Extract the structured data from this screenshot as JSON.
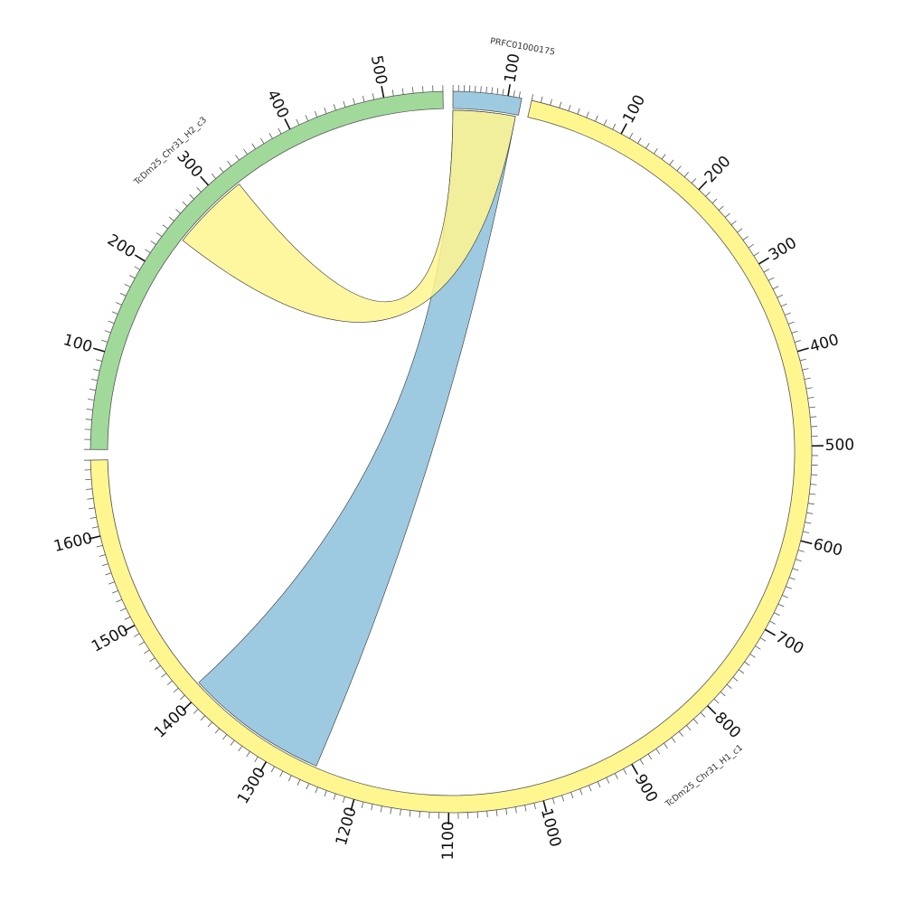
{
  "diagram": {
    "type": "circos",
    "scale_unit": "kb",
    "segments": [
      {
        "id": "PRFC01000175",
        "label": "PRFC01000175",
        "length": 125,
        "color": "#9ECAE1",
        "ticks": [
          100
        ]
      },
      {
        "id": "TcDm25_Chr31_H1_c1",
        "label": "TcDm25_Chr31_H1_c1",
        "length": 1680,
        "color": "#FFF68F",
        "ticks": [
          100,
          200,
          300,
          400,
          500,
          600,
          700,
          800,
          900,
          1000,
          1100,
          1200,
          1300,
          1400,
          1500,
          1600
        ]
      },
      {
        "id": "TcDm25_Chr31_H2_c3",
        "label": "TcDm25_Chr31_H2_c3",
        "length": 560,
        "color": "#A1D99B",
        "ticks": [
          100,
          200,
          300,
          400,
          500
        ]
      }
    ],
    "links": [
      {
        "from": {
          "segment": "PRFC01000175",
          "start": 0,
          "end": 120
        },
        "to": {
          "segment": "TcDm25_Chr31_H1_c1",
          "start": 1250,
          "end": 1410
        },
        "color": "#9ECAE1"
      },
      {
        "from": {
          "segment": "PRFC01000175",
          "start": 0,
          "end": 120
        },
        "to": {
          "segment": "TcDm25_Chr31_H2_c3",
          "start": 240,
          "end": 325
        },
        "color": "#FFF68F",
        "opacity": 0.85
      }
    ]
  }
}
